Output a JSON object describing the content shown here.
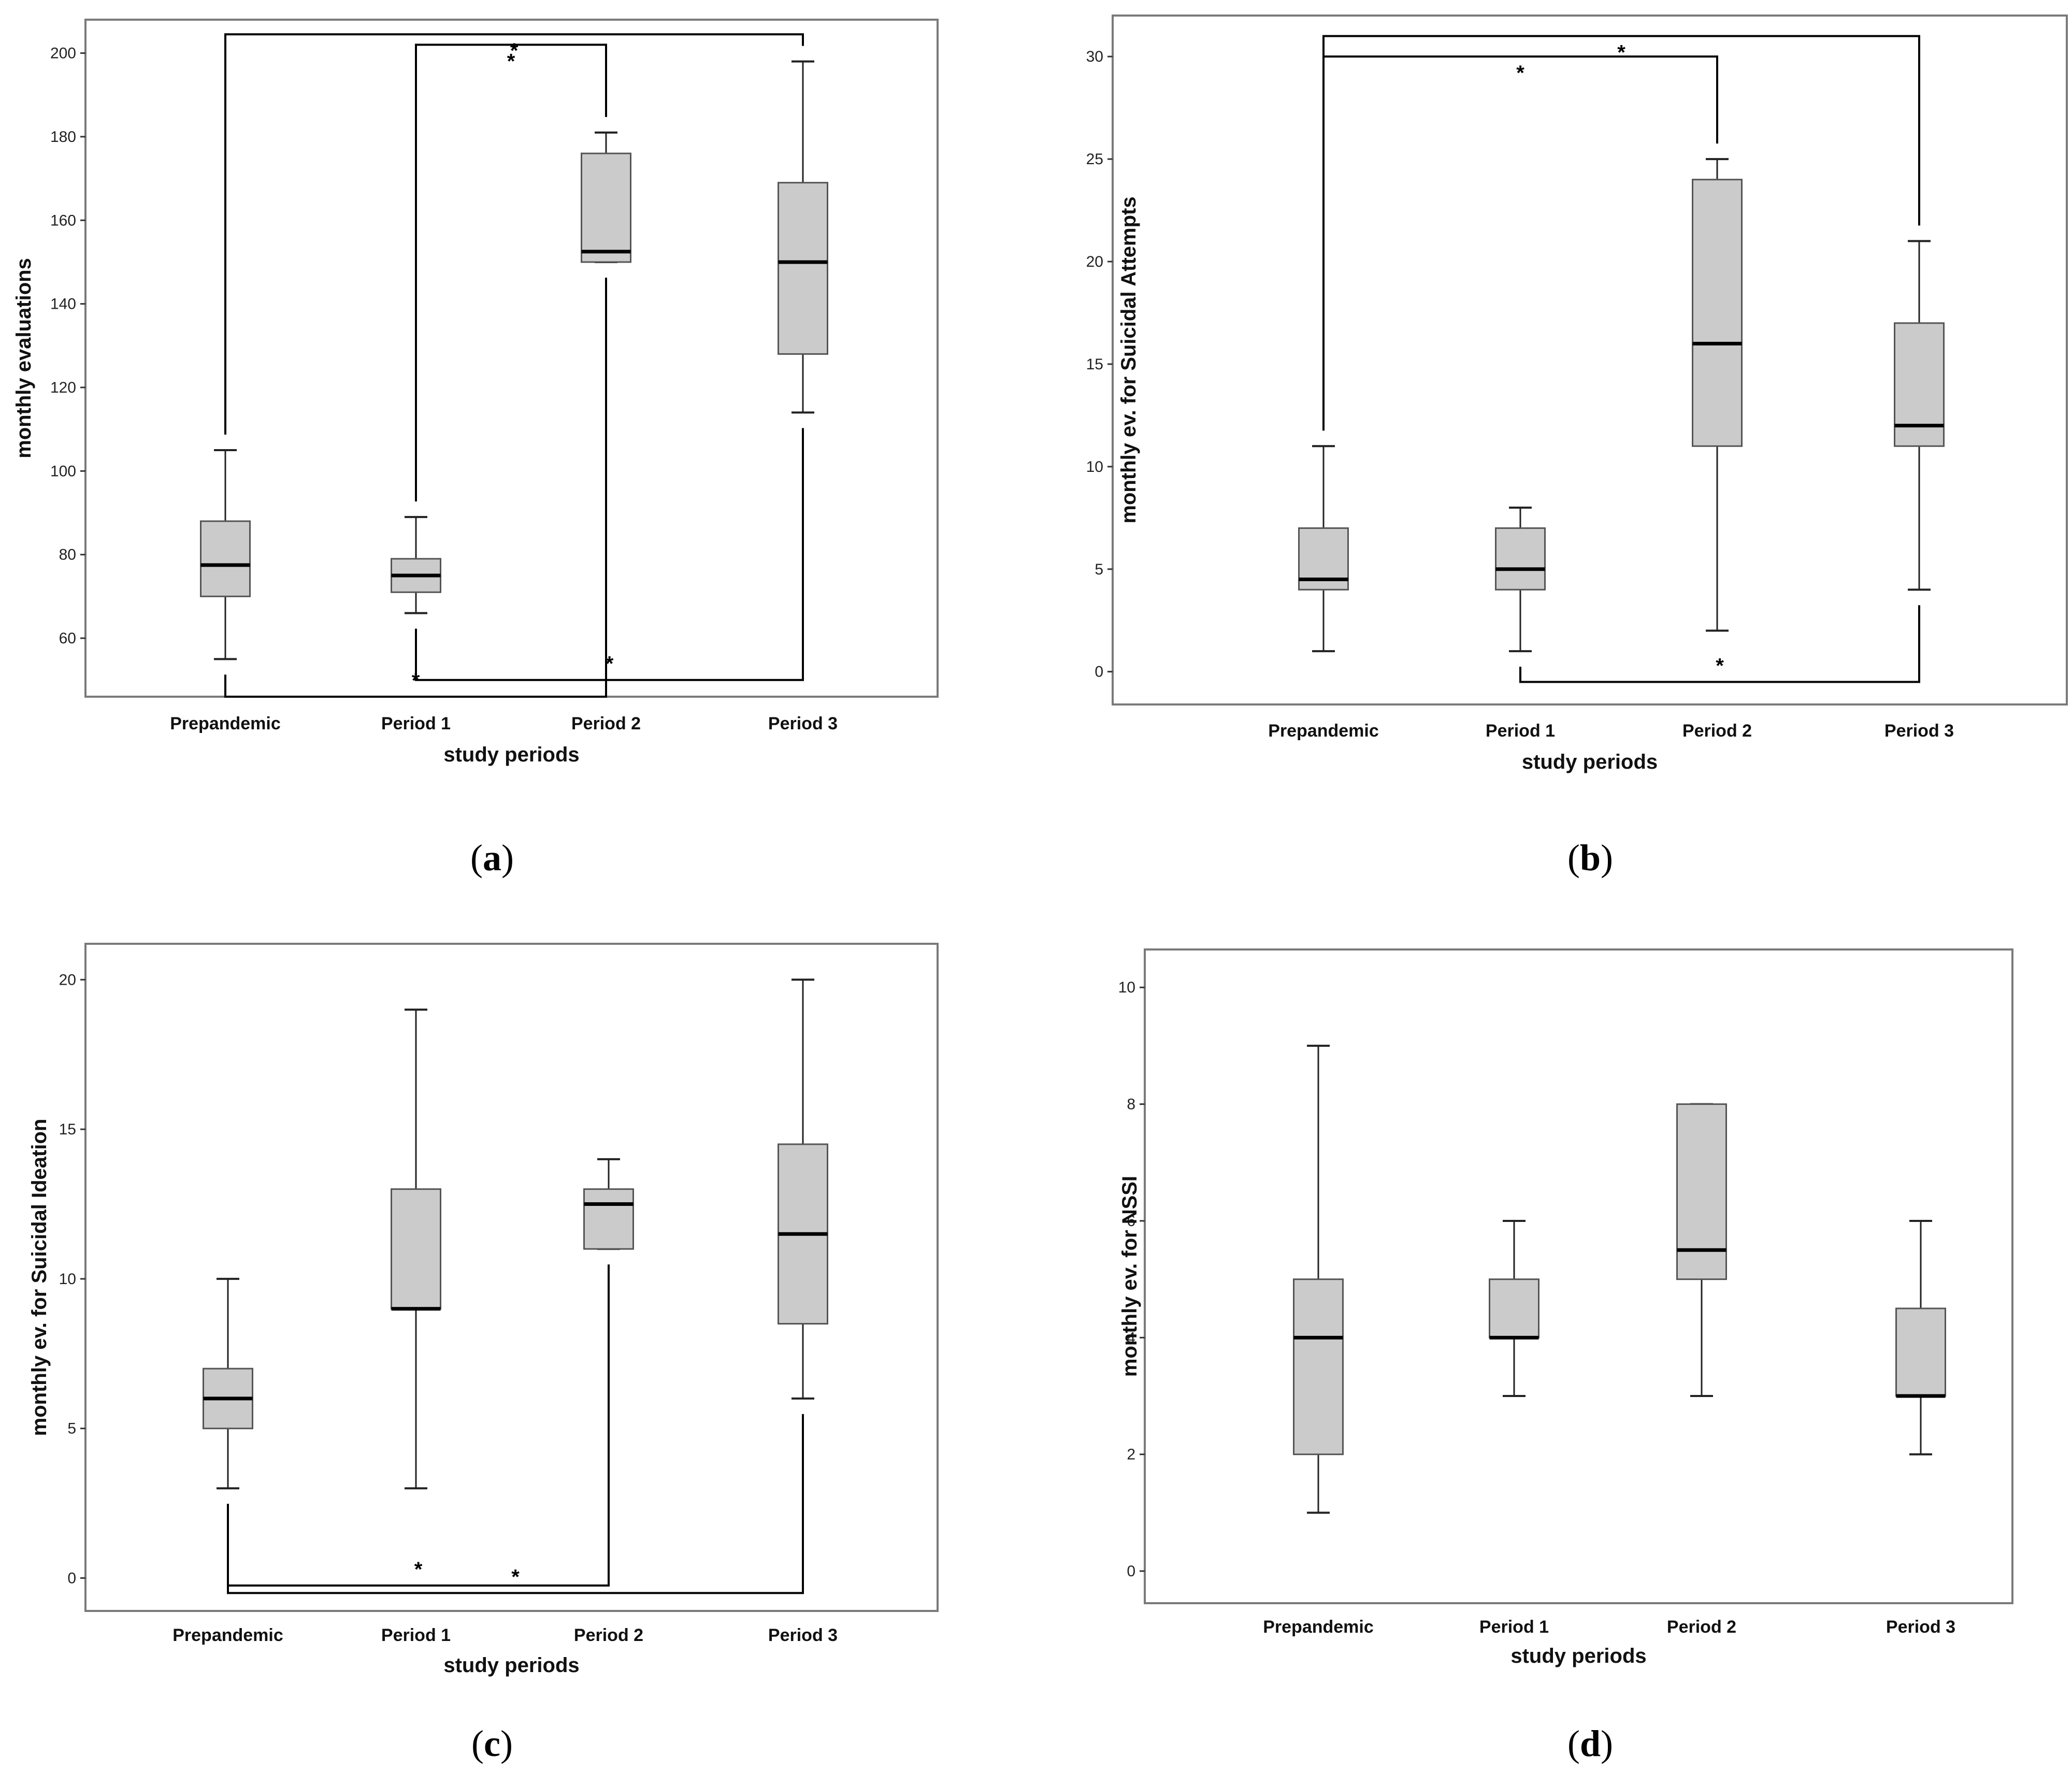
{
  "chart_data": [
    {
      "type": "box",
      "panel": "a",
      "xlabel": "study periods",
      "ylabel": "monthly evaluations",
      "categories": [
        "Prepandemic",
        "Period 1",
        "Period 2",
        "Period 3"
      ],
      "ylim": [
        46,
        208
      ],
      "yticks": [
        60,
        80,
        100,
        120,
        140,
        160,
        180,
        200
      ],
      "boxes": [
        {
          "category": "Prepandemic",
          "min": 55,
          "q1": 70,
          "median": 77.5,
          "q3": 88,
          "max": 105
        },
        {
          "category": "Period 1",
          "min": 66,
          "q1": 71,
          "median": 75,
          "q3": 79,
          "max": 89
        },
        {
          "category": "Period 2",
          "min": 150,
          "q1": 150,
          "median": 152.5,
          "q3": 176,
          "max": 181
        },
        {
          "category": "Period 3",
          "min": 114,
          "q1": 128,
          "median": 150,
          "q3": 169,
          "max": 198
        }
      ],
      "significance": [
        {
          "from": "Prepandemic",
          "to": "Period 3",
          "side": "top",
          "level": 204.5,
          "label": "*"
        },
        {
          "from": "Period 1",
          "to": "Period 2",
          "side": "top",
          "level": 202,
          "label": "*"
        },
        {
          "from": "Period 1",
          "to": "Period 3",
          "side": "bottom",
          "level": 50,
          "label": "*"
        },
        {
          "from": "Prepandemic",
          "to": "Period 2",
          "side": "bottom",
          "level": 46,
          "label": "*"
        }
      ]
    },
    {
      "type": "box",
      "panel": "b",
      "xlabel": "study periods",
      "ylabel": "monthly ev. for Suicidal Attempts",
      "categories": [
        "Prepandemic",
        "Period 1",
        "Period 2",
        "Period 3"
      ],
      "ylim": [
        -1.6,
        32
      ],
      "yticks": [
        0,
        5,
        10,
        15,
        20,
        25,
        30
      ],
      "boxes": [
        {
          "category": "Prepandemic",
          "min": 1,
          "q1": 4,
          "median": 4.5,
          "q3": 7,
          "max": 11
        },
        {
          "category": "Period 1",
          "min": 1,
          "q1": 4,
          "median": 5,
          "q3": 7,
          "max": 8
        },
        {
          "category": "Period 2",
          "min": 2,
          "q1": 11,
          "median": 16,
          "q3": 24,
          "max": 25
        },
        {
          "category": "Period 3",
          "min": 4,
          "q1": 11,
          "median": 12,
          "q3": 17,
          "max": 21
        }
      ],
      "significance": [
        {
          "from": "Prepandemic",
          "to": "Period 3",
          "side": "top",
          "level": 31,
          "label": "*"
        },
        {
          "from": "Prepandemic",
          "to": "Period 2",
          "side": "top",
          "level": 30,
          "label": "*"
        },
        {
          "from": "Period 1",
          "to": "Period 3",
          "side": "bottom",
          "level": -0.5,
          "label": "*"
        }
      ]
    },
    {
      "type": "box",
      "panel": "c",
      "xlabel": "study periods",
      "ylabel": "monthly ev. for Suicidal Ideation",
      "categories": [
        "Prepandemic",
        "Period 1",
        "Period 2",
        "Period 3"
      ],
      "ylim": [
        -1.1,
        21.2
      ],
      "yticks": [
        0,
        5,
        10,
        15,
        20
      ],
      "boxes": [
        {
          "category": "Prepandemic",
          "min": 3,
          "q1": 5,
          "median": 6,
          "q3": 7,
          "max": 10
        },
        {
          "category": "Period 1",
          "min": 3,
          "q1": 9,
          "median": 9,
          "q3": 13,
          "max": 19
        },
        {
          "category": "Period 2",
          "min": 11,
          "q1": 11,
          "median": 12.5,
          "q3": 13,
          "max": 14
        },
        {
          "category": "Period 3",
          "min": 6,
          "q1": 8.5,
          "median": 11.5,
          "q3": 14.5,
          "max": 20
        }
      ],
      "significance": [
        {
          "from": "Prepandemic",
          "to": "Period 2",
          "side": "bottom",
          "level": -0.25,
          "label": "*"
        },
        {
          "from": "Prepandemic",
          "to": "Period 3",
          "side": "bottom",
          "level": -0.5,
          "label": "*"
        }
      ]
    },
    {
      "type": "box",
      "panel": "d",
      "xlabel": "study periods",
      "ylabel": "monthly ev. for NSSI",
      "categories": [
        "Prepandemic",
        "Period 1",
        "Period 2",
        "Period 3"
      ],
      "ylim": [
        -0.55,
        10.65
      ],
      "yticks": [
        0,
        2,
        4,
        6,
        8,
        10
      ],
      "boxes": [
        {
          "category": "Prepandemic",
          "min": 1,
          "q1": 2,
          "median": 4,
          "q3": 5,
          "max": 9
        },
        {
          "category": "Period 1",
          "min": 3,
          "q1": 4,
          "median": 4,
          "q3": 5,
          "max": 6
        },
        {
          "category": "Period 2",
          "min": 3,
          "q1": 5,
          "median": 5.5,
          "q3": 8,
          "max": 8
        },
        {
          "category": "Period 3",
          "min": 2,
          "q1": 3,
          "median": 3,
          "q3": 4.5,
          "max": 6
        }
      ],
      "significance": []
    }
  ],
  "panel_labels": [
    {
      "open": "(",
      "letter": "a",
      "close": ")"
    },
    {
      "open": "(",
      "letter": "b",
      "close": ")"
    },
    {
      "open": "(",
      "letter": "c",
      "close": ")"
    },
    {
      "open": "(",
      "letter": "d",
      "close": ")"
    }
  ],
  "colors": {
    "box_fill": "#cbcbcb",
    "box_stroke": "#555555",
    "median": "#000000",
    "whisker": "#222222",
    "frame": "#7a7a7a",
    "bracket": "#000000"
  }
}
